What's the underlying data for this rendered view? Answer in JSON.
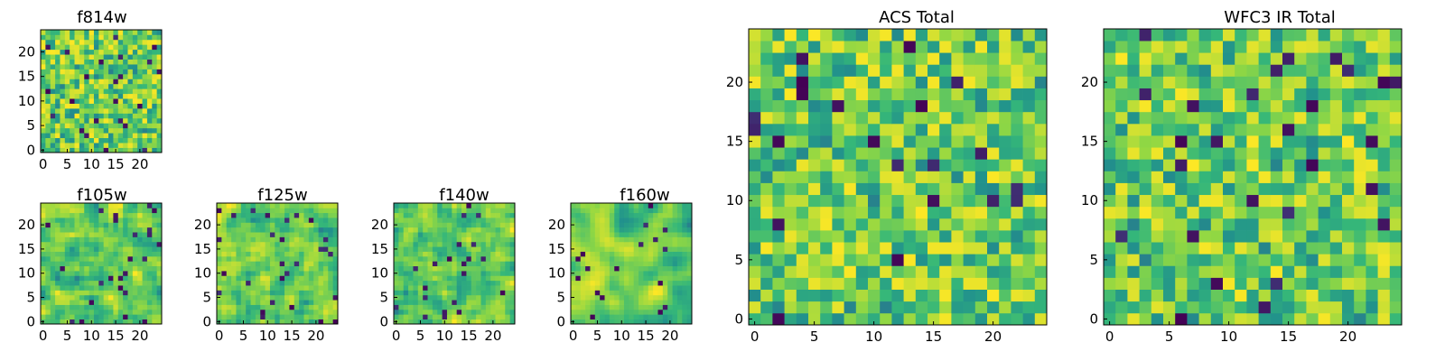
{
  "chart_data": [
    {
      "type": "heatmap",
      "title": "f814w",
      "grid": [
        25,
        25
      ],
      "colormap": "viridis",
      "xticks": [
        "0",
        "5",
        "10",
        "15",
        "20"
      ],
      "yticks": [
        "0",
        "5",
        "10",
        "15",
        "20"
      ],
      "seed": 11,
      "smooth": 0
    },
    {
      "type": "heatmap",
      "title": "f105w",
      "grid": [
        25,
        25
      ],
      "colormap": "viridis",
      "xticks": [
        "0",
        "5",
        "10",
        "15",
        "20"
      ],
      "yticks": [
        "0",
        "5",
        "10",
        "15",
        "20"
      ],
      "seed": 23,
      "smooth": 1
    },
    {
      "type": "heatmap",
      "title": "f125w",
      "grid": [
        25,
        25
      ],
      "colormap": "viridis",
      "xticks": [
        "0",
        "5",
        "10",
        "15",
        "20"
      ],
      "yticks": [
        "0",
        "5",
        "10",
        "15",
        "20"
      ],
      "seed": 37,
      "smooth": 1
    },
    {
      "type": "heatmap",
      "title": "f140w",
      "grid": [
        25,
        25
      ],
      "colormap": "viridis",
      "xticks": [
        "0",
        "5",
        "10",
        "15",
        "20"
      ],
      "yticks": [
        "0",
        "5",
        "10",
        "15",
        "20"
      ],
      "seed": 41,
      "smooth": 1
    },
    {
      "type": "heatmap",
      "title": "f160w",
      "grid": [
        25,
        25
      ],
      "colormap": "viridis",
      "xticks": [
        "0",
        "5",
        "10",
        "15",
        "20"
      ],
      "yticks": [
        "0",
        "5",
        "10",
        "15",
        "20"
      ],
      "seed": 53,
      "smooth": 2
    },
    {
      "type": "heatmap",
      "title": "ACS Total",
      "grid": [
        25,
        25
      ],
      "colormap": "viridis",
      "xticks": [
        "0",
        "5",
        "10",
        "15",
        "20"
      ],
      "yticks": [
        "0",
        "5",
        "10",
        "15",
        "20"
      ],
      "seed": 67,
      "smooth": 0
    },
    {
      "type": "heatmap",
      "title": "WFC3 IR Total",
      "grid": [
        25,
        25
      ],
      "colormap": "viridis",
      "xticks": [
        "0",
        "5",
        "10",
        "15",
        "20"
      ],
      "yticks": [
        "0",
        "5",
        "10",
        "15",
        "20"
      ],
      "seed": 79,
      "smooth": 0
    }
  ],
  "colors": {
    "viridis": [
      "#440154",
      "#3b528b",
      "#21918c",
      "#35b779",
      "#8fd744",
      "#fde725"
    ]
  }
}
